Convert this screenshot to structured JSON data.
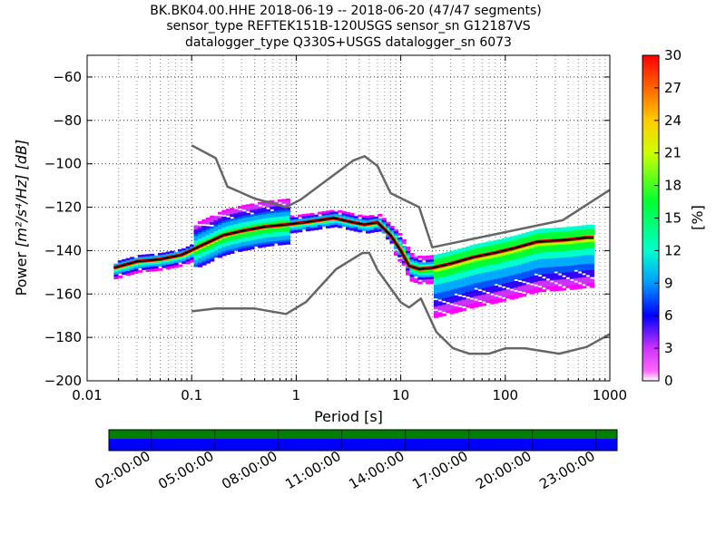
{
  "header": {
    "line1": "BK.BK04.00.HHE   2018-06-19 -- 2018-06-20  (47/47 segments)",
    "line2": "sensor_type REFTEK151B-120USGS sensor_sn G12187VS",
    "line3": "datalogger_type Q330S+USGS datalogger_sn 6073"
  },
  "chart_data": {
    "type": "heatmap",
    "xlabel": "Period [s]",
    "ylabel": "Power",
    "ylabel_math": "[m²/s⁴/Hz] [dB]",
    "x_scale": "log",
    "xlim": [
      0.01,
      1000
    ],
    "ylim": [
      -200,
      -50
    ],
    "x_ticks": [
      "0.01",
      "0.1",
      "1",
      "10",
      "100",
      "1000"
    ],
    "y_ticks": [
      "−60",
      "−80",
      "−100",
      "−120",
      "−140",
      "−160",
      "−180",
      "−200"
    ],
    "colorbar": {
      "label": "[%]",
      "range": [
        0,
        30
      ],
      "ticks": [
        "0",
        "3",
        "6",
        "9",
        "12",
        "15",
        "18",
        "21",
        "24",
        "27",
        "30"
      ]
    },
    "grid": true,
    "noise_model_high": {
      "x": [
        0.1,
        0.17,
        0.22,
        0.4,
        0.8,
        1.1,
        3.5,
        4.5,
        6,
        8,
        15,
        20,
        354,
        1000
      ],
      "y": [
        -91.5,
        -97.4,
        -110.5,
        -116.0,
        -120.0,
        -116.5,
        -98.5,
        -96.5,
        -101.0,
        -113.5,
        -120.0,
        -138.5,
        -126.0,
        -112.0
      ]
    },
    "noise_model_low": {
      "x": [
        0.1,
        0.17,
        0.4,
        0.8,
        1.24,
        2.4,
        4.3,
        5,
        6,
        10,
        12,
        15.6,
        21.9,
        31.6,
        45,
        70,
        101,
        154,
        328,
        600,
        1000
      ],
      "y": [
        -168.0,
        -166.7,
        -166.7,
        -169.2,
        -163.7,
        -148.6,
        -141.1,
        -141.1,
        -149.0,
        -163.8,
        -166.2,
        -162.1,
        -177.5,
        -185.0,
        -187.5,
        -187.5,
        -185.0,
        -185.0,
        -187.5,
        -184.4,
        -178.5
      ]
    },
    "mode_curve": {
      "x": [
        0.018,
        0.03,
        0.05,
        0.08,
        0.12,
        0.2,
        0.3,
        0.5,
        0.8,
        1.2,
        2.3,
        3.5,
        4.5,
        6,
        8,
        10,
        12,
        15,
        20,
        30,
        50,
        80,
        120,
        200,
        400,
        600,
        700
      ],
      "y": [
        -148,
        -145,
        -144,
        -142,
        -138,
        -133,
        -131,
        -129,
        -128,
        -127,
        -125,
        -127,
        -128,
        -127,
        -133,
        -140,
        -147,
        -148.5,
        -148,
        -146,
        -143,
        -141,
        -139,
        -136,
        -135,
        -134,
        -134
      ]
    },
    "time_coverage": {
      "tick_labels": [
        "02:00:00",
        "05:00:00",
        "08:00:00",
        "11:00:00",
        "14:00:00",
        "17:00:00",
        "20:00:00",
        "23:00:00"
      ],
      "segments": 47,
      "colors": {
        "top": "#008000",
        "bottom": "#0000ff"
      }
    }
  }
}
